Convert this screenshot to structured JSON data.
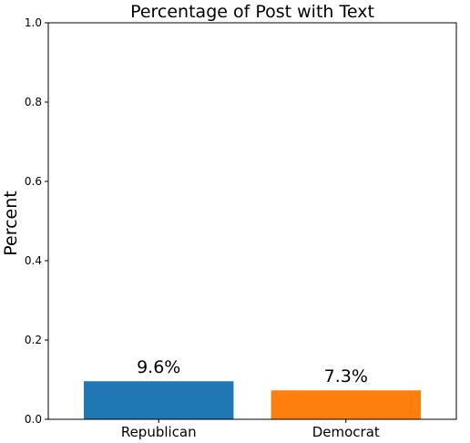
{
  "chart_data": {
    "type": "bar",
    "title": "Percentage of Post with Text",
    "xlabel": "",
    "ylabel": "Percent",
    "categories": [
      "Republican",
      "Democrat"
    ],
    "values": [
      0.096,
      0.073
    ],
    "data_labels": [
      "9.6%",
      "7.3%"
    ],
    "colors": [
      "#1f77b4",
      "#ff7f0e"
    ],
    "ylim": [
      0,
      1.0
    ],
    "yticks": [
      0.0,
      0.2,
      0.4,
      0.6,
      0.8,
      1.0
    ],
    "ytick_labels": [
      "0.0",
      "0.2",
      "0.4",
      "0.6",
      "0.8",
      "1.0"
    ],
    "grid": false,
    "legend": "none"
  }
}
